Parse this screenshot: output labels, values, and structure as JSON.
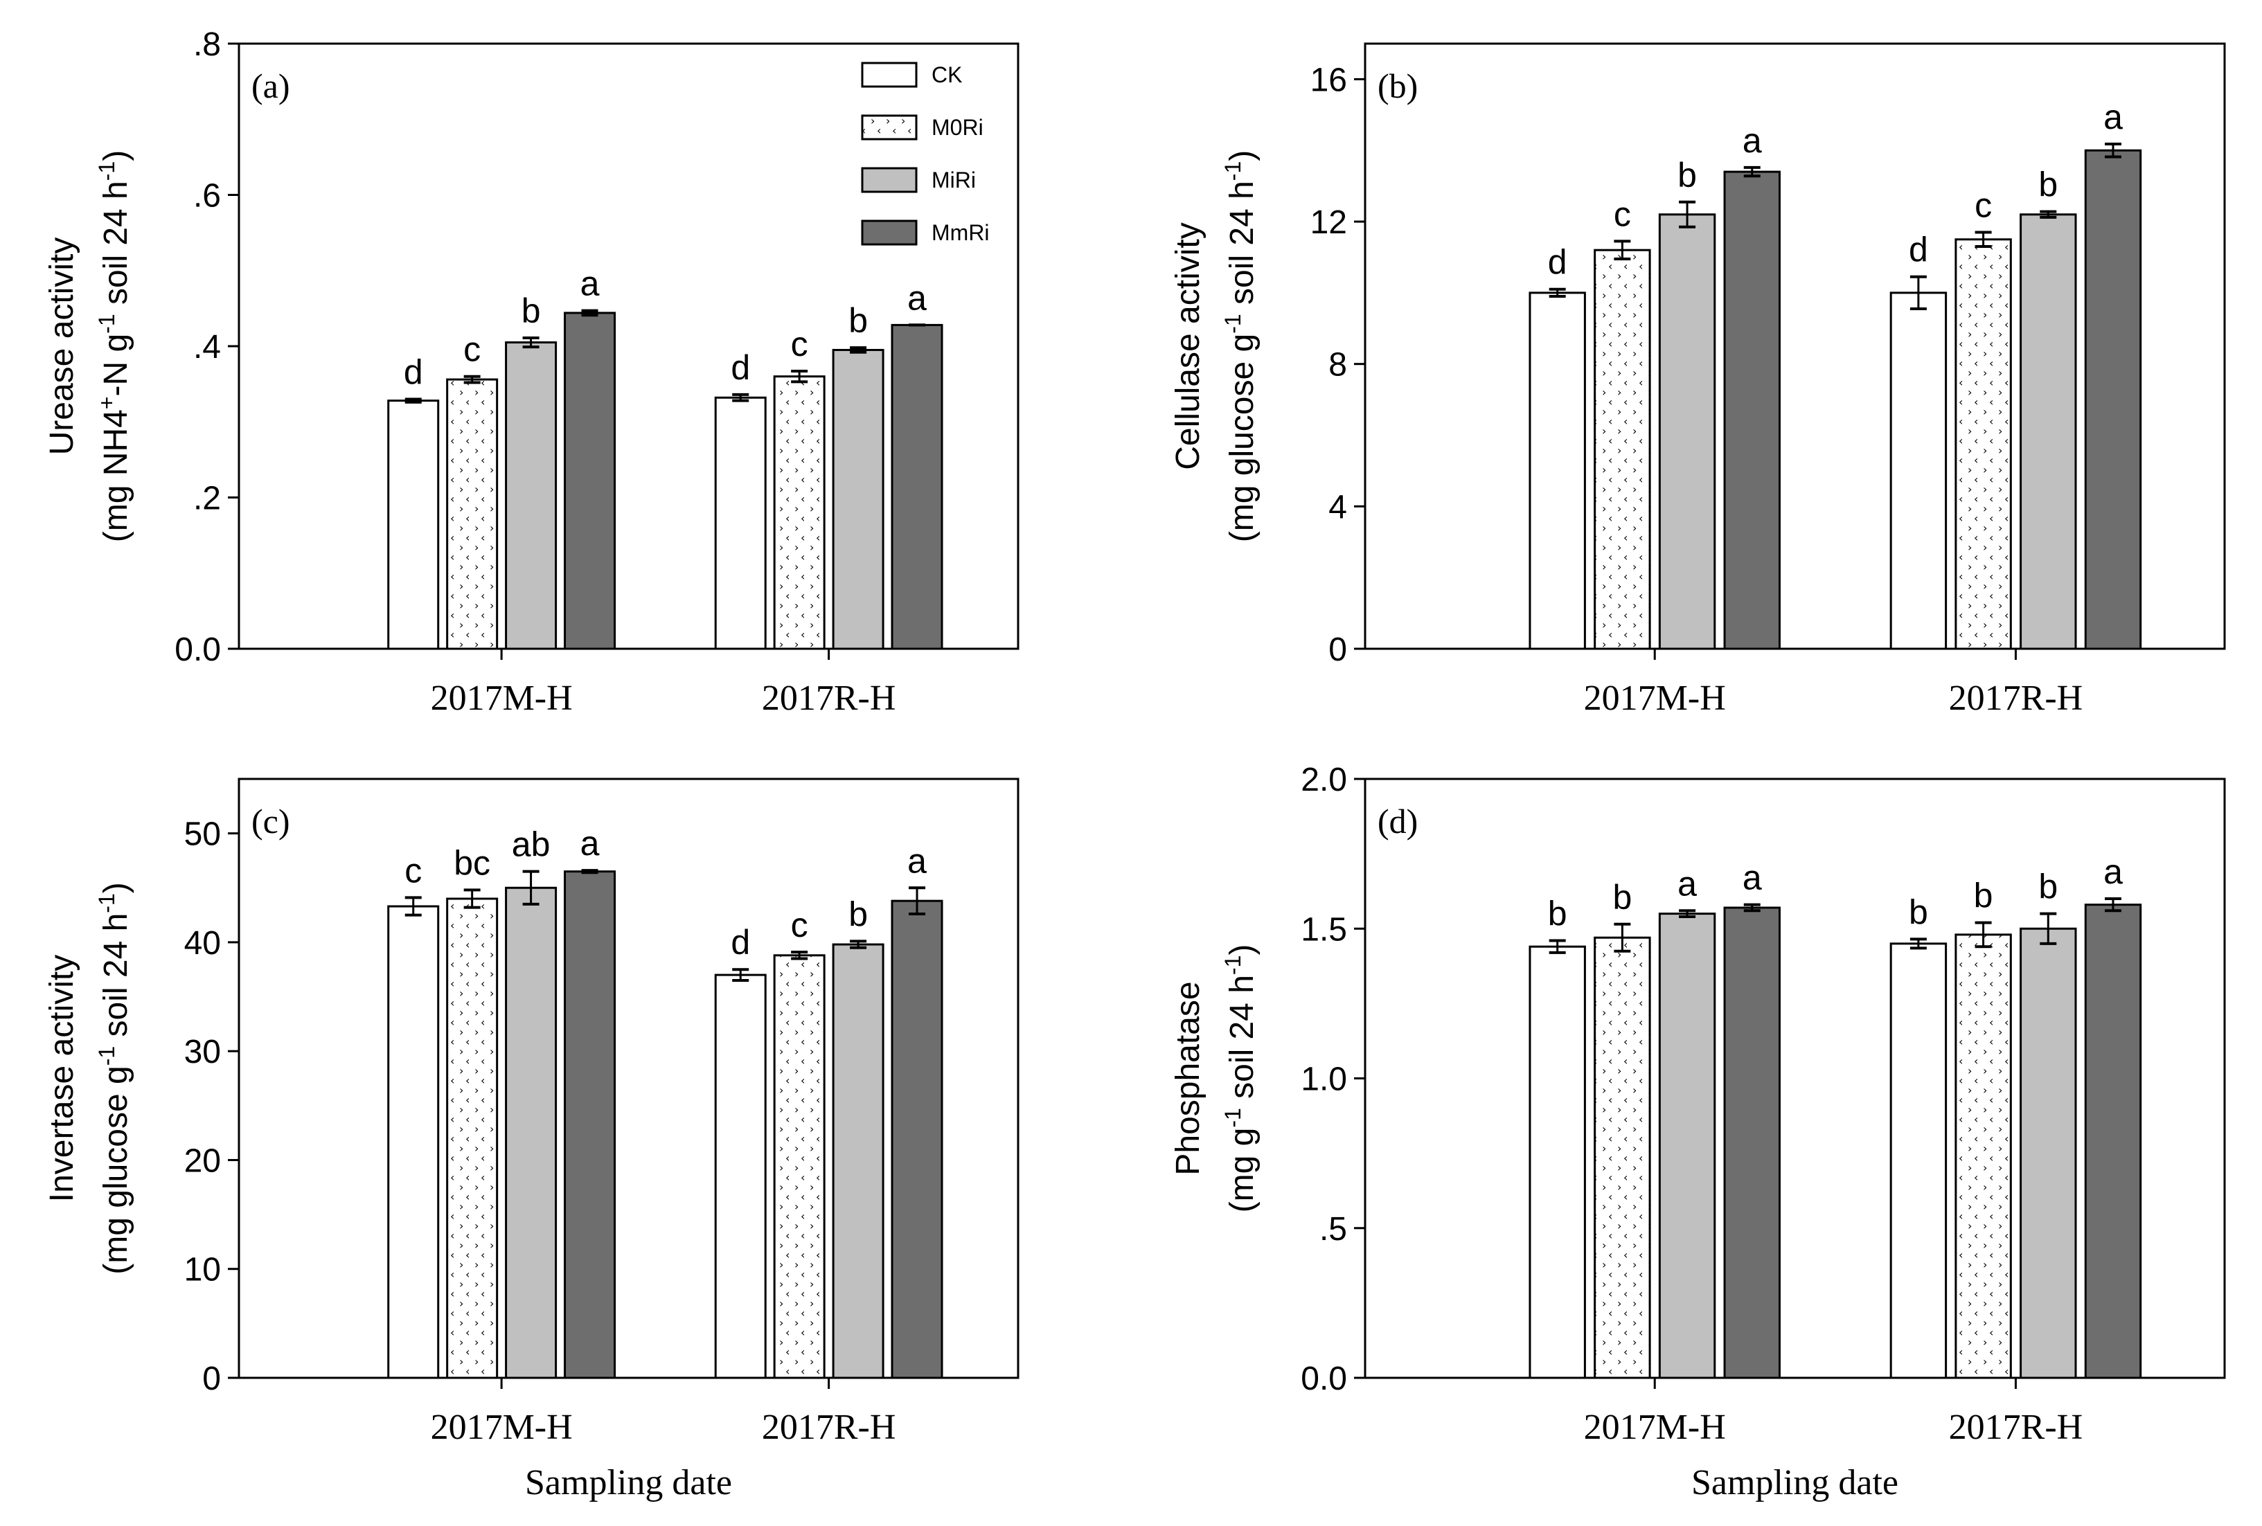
{
  "legend": {
    "entries": [
      "CK",
      "M0Ri",
      "MiRi",
      "MmRi"
    ],
    "colors": [
      "#ffffff",
      "#ffffff",
      "#c0c0c0",
      "#6e6e6e"
    ],
    "patterns": [
      "none",
      "dots",
      "none",
      "none"
    ]
  },
  "x_axis_title": "Sampling date",
  "chart_data": [
    {
      "type": "bar",
      "panel_label": "(a)",
      "categories": [
        "2017M-H",
        "2017R-H"
      ],
      "series": [
        {
          "name": "CK",
          "values": [
            0.328,
            0.332
          ],
          "errors": [
            0.002,
            0.004
          ],
          "letters": [
            "d",
            "d"
          ]
        },
        {
          "name": "M0Ri",
          "values": [
            0.356,
            0.36
          ],
          "errors": [
            0.004,
            0.007
          ],
          "letters": [
            "c",
            "c"
          ]
        },
        {
          "name": "MiRi",
          "values": [
            0.405,
            0.395
          ],
          "errors": [
            0.006,
            0.003
          ],
          "letters": [
            "b",
            "b"
          ]
        },
        {
          "name": "MmRi",
          "values": [
            0.444,
            0.428
          ],
          "errors": [
            0.003,
            0.0
          ],
          "letters": [
            "a",
            "a"
          ]
        }
      ],
      "ylim": [
        0,
        0.8
      ],
      "yticks": [
        0,
        0.2,
        0.4,
        0.6,
        0.8
      ],
      "ytick_labels": [
        "0.0",
        ".2",
        ".4",
        ".6",
        ".8"
      ],
      "ylabel_line1": "Urease activity",
      "ylabel_line2_prefix": "(mg NH4",
      "ylabel_line2_sup1": "+",
      "ylabel_line2_mid1": "-N g",
      "ylabel_line2_sup2": "-1",
      "ylabel_line2_mid2": " soil 24 h",
      "ylabel_line2_sup3": "-1",
      "ylabel_line2_suffix": ")",
      "xlabel": "",
      "legend": true
    },
    {
      "type": "bar",
      "panel_label": "(b)",
      "categories": [
        "2017M-H",
        "2017R-H"
      ],
      "series": [
        {
          "name": "CK",
          "values": [
            10.0,
            10.0
          ],
          "errors": [
            0.1,
            0.45
          ],
          "letters": [
            "d",
            "d"
          ]
        },
        {
          "name": "M0Ri",
          "values": [
            11.2,
            11.5
          ],
          "errors": [
            0.25,
            0.2
          ],
          "letters": [
            "c",
            "c"
          ]
        },
        {
          "name": "MiRi",
          "values": [
            12.2,
            12.2
          ],
          "errors": [
            0.35,
            0.08
          ],
          "letters": [
            "b",
            "b"
          ]
        },
        {
          "name": "MmRi",
          "values": [
            13.4,
            14.0
          ],
          "errors": [
            0.12,
            0.18
          ],
          "letters": [
            "a",
            "a"
          ]
        }
      ],
      "ylim": [
        0,
        17
      ],
      "yticks": [
        0,
        4,
        8,
        12,
        16
      ],
      "ytick_labels": [
        "0",
        "4",
        "8",
        "12",
        "16"
      ],
      "ylabel_line1": "Cellulase activity",
      "ylabel_line2_prefix": "(mg glucose g",
      "ylabel_line2_sup1": "-1",
      "ylabel_line2_mid1": " soil 24 h",
      "ylabel_line2_sup2": "-1",
      "ylabel_line2_mid2": "",
      "ylabel_line2_sup3": "",
      "ylabel_line2_suffix": ")",
      "xlabel": "",
      "legend": false
    },
    {
      "type": "bar",
      "panel_label": "(c)",
      "categories": [
        "2017M-H",
        "2017R-H"
      ],
      "series": [
        {
          "name": "CK",
          "values": [
            43.3,
            37.0
          ],
          "errors": [
            0.8,
            0.5
          ],
          "letters": [
            "c",
            "d"
          ]
        },
        {
          "name": "M0Ri",
          "values": [
            44.0,
            38.8
          ],
          "errors": [
            0.8,
            0.3
          ],
          "letters": [
            "bc",
            "c"
          ]
        },
        {
          "name": "MiRi",
          "values": [
            45.0,
            39.8
          ],
          "errors": [
            1.5,
            0.3
          ],
          "letters": [
            "ab",
            "b"
          ]
        },
        {
          "name": "MmRi",
          "values": [
            46.5,
            43.8
          ],
          "errors": [
            0.1,
            1.2
          ],
          "letters": [
            "a",
            "a"
          ]
        }
      ],
      "ylim": [
        0,
        55
      ],
      "yticks": [
        0,
        10,
        20,
        30,
        40,
        50
      ],
      "ytick_labels": [
        "0",
        "10",
        "20",
        "30",
        "40",
        "50"
      ],
      "ylabel_line1": "Invertase activity",
      "ylabel_line2_prefix": "(mg glucose g",
      "ylabel_line2_sup1": "-1",
      "ylabel_line2_mid1": " soil 24 h",
      "ylabel_line2_sup2": "-1",
      "ylabel_line2_mid2": "",
      "ylabel_line2_sup3": "",
      "ylabel_line2_suffix": ")",
      "xlabel": "Sampling date",
      "legend": false
    },
    {
      "type": "bar",
      "panel_label": "(d)",
      "categories": [
        "2017M-H",
        "2017R-H"
      ],
      "series": [
        {
          "name": "CK",
          "values": [
            1.44,
            1.45
          ],
          "errors": [
            0.02,
            0.015
          ],
          "letters": [
            "b",
            "b"
          ]
        },
        {
          "name": "M0Ri",
          "values": [
            1.47,
            1.48
          ],
          "errors": [
            0.045,
            0.04
          ],
          "letters": [
            "b",
            "b"
          ]
        },
        {
          "name": "MiRi",
          "values": [
            1.55,
            1.5
          ],
          "errors": [
            0.01,
            0.05
          ],
          "letters": [
            "a",
            "b"
          ]
        },
        {
          "name": "MmRi",
          "values": [
            1.57,
            1.58
          ],
          "errors": [
            0.01,
            0.02
          ],
          "letters": [
            "a",
            "a"
          ]
        }
      ],
      "ylim": [
        0,
        2.0
      ],
      "yticks": [
        0,
        0.5,
        1.0,
        1.5,
        2.0
      ],
      "ytick_labels": [
        "0.0",
        ".5",
        "1.0",
        "1.5",
        "2.0"
      ],
      "ylabel_line1": "Phosphatase",
      "ylabel_line2_prefix": "(mg g",
      "ylabel_line2_sup1": "-1",
      "ylabel_line2_mid1": " soil 24 h",
      "ylabel_line2_sup2": "-1",
      "ylabel_line2_mid2": "",
      "ylabel_line2_sup3": "",
      "ylabel_line2_suffix": ")",
      "xlabel": "Sampling date",
      "legend": false
    }
  ]
}
